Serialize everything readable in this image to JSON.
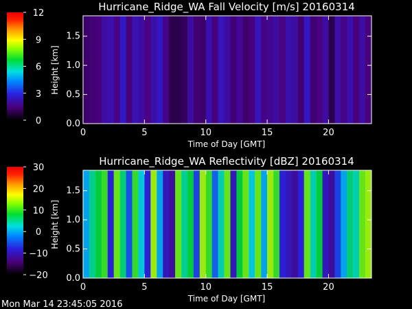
{
  "footer": {
    "timestamp": "Mon Mar 14 23:45:05 2016"
  },
  "chart_data": [
    {
      "type": "heatmap",
      "title": "Hurricane_Ridge_WA Fall Velocity [m/s] 20160314",
      "xlabel": "Time of Day [GMT]",
      "ylabel": "Height [km]",
      "xlim": [
        0,
        23.5
      ],
      "ylim": [
        0,
        1.85
      ],
      "x_ticks": [
        0,
        5,
        10,
        15,
        20
      ],
      "x_tick_labels": [
        "0",
        "5",
        "10",
        "15",
        "20"
      ],
      "y_ticks": [
        0.0,
        0.5,
        1.0,
        1.5
      ],
      "y_tick_labels": [
        "0.0",
        "0.5",
        "1.0",
        "1.5"
      ],
      "colorbar": {
        "min": 0,
        "max": 12,
        "ticks": [
          0,
          3,
          6,
          9,
          12
        ],
        "tick_labels": [
          "0",
          "3",
          "6",
          "9",
          "12"
        ]
      },
      "column_values_x_step_h": 0.5,
      "column_values": [
        1.2,
        1.3,
        1.4,
        2.0,
        2.2,
        1.5,
        2.6,
        1.4,
        2.3,
        2.0,
        1.5,
        2.1,
        2.5,
        1.6,
        0.8,
        0.8,
        1.0,
        2.0,
        1.3,
        1.2,
        2.2,
        1.4,
        2.4,
        2.0,
        1.3,
        1.8,
        1.2,
        1.4,
        2.4,
        1.6,
        1.7,
        2.0,
        1.5,
        2.2,
        2.0,
        1.3,
        2.5,
        1.3,
        1.5,
        2.0,
        0.8,
        2.1,
        1.6,
        2.2,
        1.4,
        2.0,
        1.4
      ]
    },
    {
      "type": "heatmap",
      "title": "Hurricane_Ridge_WA Reflectivity [dBZ] 20160314",
      "xlabel": "Time of Day [GMT]",
      "ylabel": "Height [km]",
      "xlim": [
        0,
        23.5
      ],
      "ylim": [
        0,
        1.85
      ],
      "x_ticks": [
        0,
        5,
        10,
        15,
        20
      ],
      "x_tick_labels": [
        "0",
        "5",
        "10",
        "15",
        "20"
      ],
      "y_ticks": [
        0.0,
        0.5,
        1.0,
        1.5
      ],
      "y_tick_labels": [
        "0.0",
        "0.5",
        "1.0",
        "1.5"
      ],
      "colorbar": {
        "min": -20,
        "max": 30,
        "ticks": [
          -20,
          -10,
          0,
          10,
          20,
          30
        ],
        "tick_labels": [
          "−20",
          "−10",
          "0",
          "10",
          "20",
          "30"
        ]
      },
      "column_values_x_step_h": 0.5,
      "column_values": [
        0,
        5,
        8,
        10,
        -8,
        12,
        6,
        -5,
        10,
        2,
        -8,
        14,
        0,
        -10,
        -12,
        12,
        5,
        8,
        -6,
        14,
        10,
        -4,
        4,
        12,
        -10,
        8,
        12,
        2,
        12,
        0,
        14,
        10,
        -8,
        -10,
        -12,
        -8,
        12,
        4,
        8,
        -10,
        -12,
        -6,
        0,
        6,
        4,
        12,
        14
      ]
    }
  ]
}
